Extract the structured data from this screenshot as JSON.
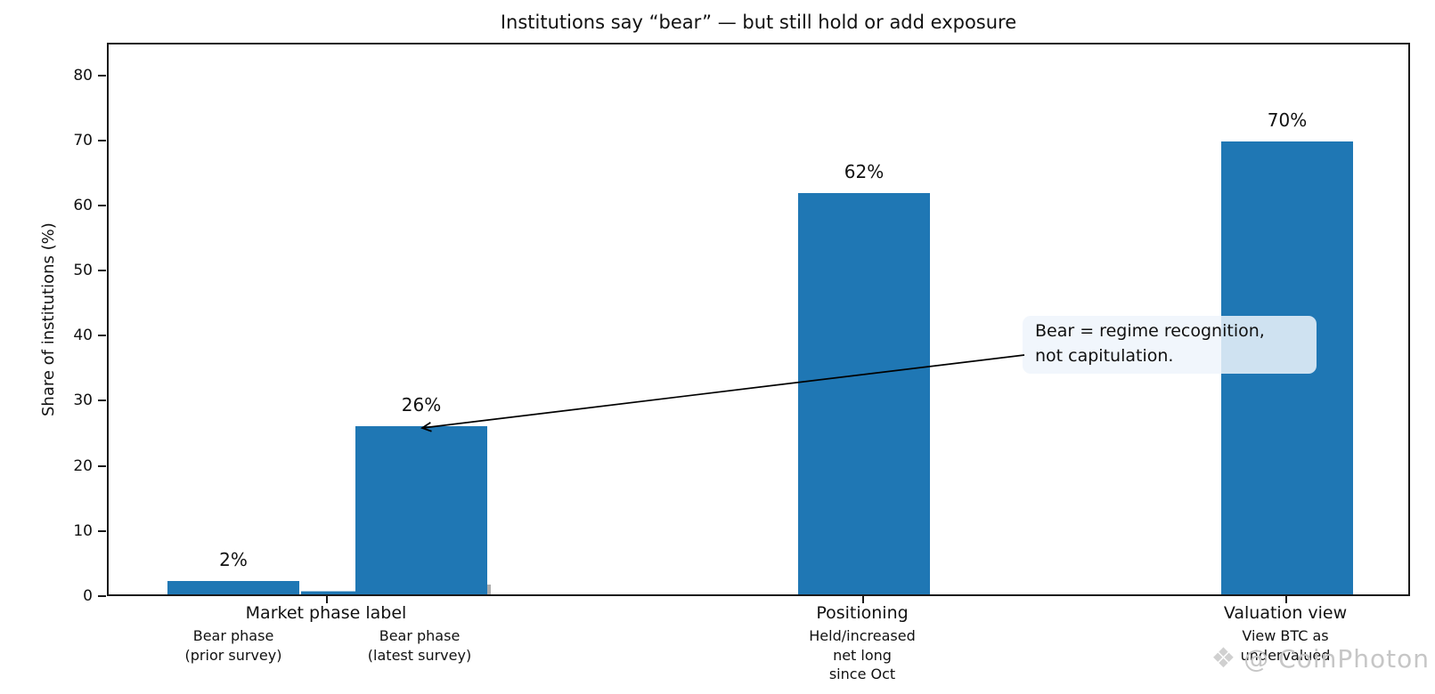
{
  "chart_data": {
    "type": "bar",
    "title": "Institutions say “bear” — but still hold or add exposure",
    "ylabel": "Share of institutions (%)",
    "ylim": [
      0,
      85
    ],
    "yticks": [
      0,
      10,
      20,
      30,
      40,
      50,
      60,
      70,
      80
    ],
    "bar_color": "#1f77b4",
    "grid": false,
    "legend": null,
    "groups": [
      {
        "label": "Market phase label",
        "bars": [
          {
            "value": 2,
            "value_label": "2%",
            "sublabel": "Bear phase\n(prior survey)"
          },
          {
            "value": 26,
            "value_label": "26%",
            "sublabel": "Bear phase\n(latest survey)"
          }
        ]
      },
      {
        "label": "Positioning",
        "bars": [
          {
            "value": 62,
            "value_label": "62%",
            "sublabel": "Held/increased\nnet long\nsince Oct"
          }
        ]
      },
      {
        "label": "Valuation view",
        "bars": [
          {
            "value": 70,
            "value_label": "70%",
            "sublabel": "View BTC as\nundervalued"
          }
        ]
      }
    ],
    "artifact_bar_value": 0.6,
    "annotation": {
      "text": "Bear = regime recognition,\nnot capitulation."
    },
    "watermark": {
      "logo": "❖",
      "text": "@ CoinPhoton"
    }
  }
}
